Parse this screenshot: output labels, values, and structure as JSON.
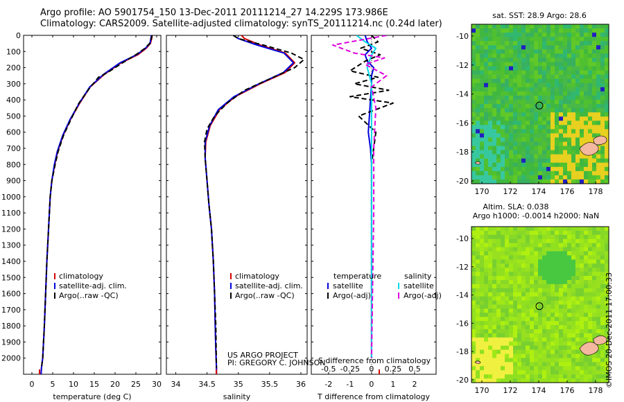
{
  "header": {
    "line1": "Argo profile: AO 5901754_150 13-Dec-2011 20111214_27 14.229S 173.986E",
    "line2": "Climatology: CARS2009. Satellite-adjusted climatology: synTS_20111214.nc (0.24d later)"
  },
  "credit": {
    "project": "US ARGO PROJECT",
    "pi": "PI: GREGORY C. JOHNSON"
  },
  "imos_stamp": "©IMOS 20-Dec-2011 17:00:33",
  "colors": {
    "climatology": "#d00000",
    "satellite": "#0000dd",
    "argo": "#000000",
    "sal_satellite": "#00d8e8",
    "sal_argo": "#dd00dd"
  },
  "chart_data": [
    {
      "type": "line",
      "xlabel": "temperature (deg C)",
      "ylabel": "",
      "xlim": [
        -2,
        31
      ],
      "ylim": [
        2100,
        0
      ],
      "xticks": [
        0,
        5,
        10,
        15,
        20,
        25,
        30
      ],
      "yticks": [
        0,
        100,
        200,
        300,
        400,
        500,
        600,
        700,
        800,
        900,
        1000,
        1100,
        1200,
        1300,
        1400,
        1500,
        1600,
        1700,
        1800,
        1900,
        2000
      ],
      "legend": [
        "climatology",
        "satellite-adj. clim.",
        "Argo(..raw -QC)"
      ],
      "series": [
        {
          "name": "climatology",
          "x": [
            28.9,
            28.8,
            28.5,
            27.5,
            25.5,
            21.5,
            17.5,
            14.0,
            11.5,
            9.3,
            7.5,
            6.2,
            5.5,
            4.8,
            4.4,
            4.0,
            3.6,
            3.3,
            3.0,
            2.6,
            2.3,
            2.2
          ],
          "y": [
            0,
            20,
            50,
            80,
            120,
            170,
            240,
            320,
            420,
            520,
            620,
            720,
            800,
            900,
            1000,
            1200,
            1400,
            1600,
            1800,
            2000,
            2060,
            2100
          ]
        },
        {
          "name": "satellite-adj. clim.",
          "x": [
            28.7,
            28.6,
            28.4,
            27.3,
            25.2,
            21.2,
            17.3,
            13.9,
            11.4,
            9.2,
            7.4,
            6.1,
            5.4,
            4.8,
            4.4,
            4.0,
            3.6,
            3.3,
            3.0,
            2.6,
            2.3,
            2.2
          ],
          "y": [
            0,
            20,
            50,
            80,
            120,
            170,
            240,
            320,
            420,
            520,
            620,
            720,
            800,
            900,
            1000,
            1200,
            1400,
            1600,
            1800,
            2000,
            2060,
            2100
          ]
        },
        {
          "name": "Argo(..raw -QC)",
          "x": [
            28.9,
            28.7,
            28.3,
            27.2,
            25.0,
            21.8,
            18.2,
            16.0,
            13.8,
            11.3,
            9.4,
            7.6,
            6.3,
            5.6,
            4.8,
            4.4,
            4.0,
            3.6,
            3.3,
            3.0,
            2.6,
            2.3
          ],
          "y": [
            0,
            20,
            50,
            80,
            120,
            170,
            230,
            260,
            330,
            420,
            520,
            620,
            720,
            800,
            900,
            1000,
            1200,
            1400,
            1600,
            1800,
            2000,
            2060
          ]
        }
      ]
    },
    {
      "type": "line",
      "xlabel": "salinity",
      "ylabel": "",
      "xlim": [
        33.85,
        36.1
      ],
      "ylim": [
        2100,
        0
      ],
      "xticks": [
        34,
        34.5,
        35,
        35.5,
        36
      ],
      "legend": [
        "climatology",
        "satellite-adj. clim.",
        "Argo(..raw -QC)"
      ],
      "series": [
        {
          "name": "climatology",
          "x": [
            35.05,
            35.1,
            35.35,
            35.75,
            35.9,
            35.75,
            35.35,
            34.95,
            34.7,
            34.55,
            34.48,
            34.47,
            34.5,
            34.53,
            34.57,
            34.6,
            34.62,
            34.63,
            34.64,
            34.65,
            34.65
          ],
          "y": [
            0,
            20,
            60,
            110,
            170,
            230,
            300,
            380,
            460,
            560,
            660,
            760,
            900,
            1050,
            1200,
            1400,
            1600,
            1800,
            1950,
            2060,
            2100
          ]
        },
        {
          "name": "satellite-adj. clim.",
          "x": [
            34.92,
            35.0,
            35.3,
            35.73,
            35.88,
            35.72,
            35.33,
            34.93,
            34.68,
            34.54,
            34.47,
            34.47,
            34.5,
            34.53,
            34.57,
            34.6,
            34.62,
            34.63,
            34.64,
            34.65,
            34.65
          ],
          "y": [
            0,
            20,
            60,
            110,
            170,
            230,
            300,
            380,
            460,
            560,
            660,
            760,
            900,
            1050,
            1200,
            1400,
            1600,
            1800,
            1950,
            2060,
            2100
          ]
        },
        {
          "name": "Argo(..raw -QC)",
          "x": [
            34.92,
            35.0,
            35.4,
            35.85,
            36.05,
            35.9,
            35.5,
            35.1,
            34.82,
            34.62,
            34.5,
            34.46,
            34.47,
            34.5,
            34.53,
            34.57,
            34.6,
            34.62,
            34.64,
            34.65
          ],
          "y": [
            0,
            20,
            60,
            110,
            150,
            200,
            270,
            340,
            420,
            500,
            580,
            660,
            760,
            900,
            1050,
            1200,
            1400,
            1600,
            1800,
            2060
          ]
        }
      ]
    },
    {
      "type": "line",
      "xlabel": "T difference from climatology",
      "xlabel_top": "S difference from climatology",
      "ylabel": "",
      "xlim": [
        -2.8,
        3.0
      ],
      "ylim": [
        2100,
        0
      ],
      "xticks": [
        -2,
        -1,
        0,
        1,
        2
      ],
      "sticks": [
        -0.5,
        -0.25,
        0,
        0.25,
        0.5
      ],
      "legend_titles": [
        "temperature",
        "salinity"
      ],
      "legend": [
        "satellite",
        "Argo(-adj)",
        "satellite",
        "Argo(-adj)"
      ],
      "series": [
        {
          "name": "satellite",
          "x": [
            -0.3,
            -0.2,
            0.0,
            -0.3,
            -0.2,
            0.1,
            0.0,
            0.0,
            -0.05,
            -0.1,
            -0.15,
            -0.05,
            0.0,
            0.0,
            0.0
          ],
          "y": [
            0,
            40,
            80,
            120,
            160,
            200,
            250,
            300,
            400,
            500,
            600,
            700,
            800,
            1200,
            2000
          ]
        },
        {
          "name": "Argo(-adj)",
          "x": [
            0.0,
            0.3,
            -0.5,
            0.4,
            -0.3,
            -1.0,
            0.3,
            -0.8,
            0.8,
            -1.0,
            1.0,
            -0.6,
            0.2,
            0.0,
            0.0,
            0.0
          ],
          "y": [
            0,
            40,
            80,
            120,
            160,
            220,
            260,
            300,
            340,
            380,
            420,
            500,
            600,
            800,
            1200,
            2000
          ]
        },
        {
          "name": "satellite",
          "x": [
            -0.7,
            -0.3,
            0.2,
            0.0,
            -0.2,
            0.0,
            0.0,
            0.0,
            0.0
          ],
          "y": [
            0,
            40,
            80,
            120,
            200,
            300,
            600,
            1200,
            2000
          ]
        },
        {
          "name": "Argo(-adj)",
          "x": [
            0.7,
            -1.8,
            -0.8,
            0.6,
            -0.3,
            0.7,
            0.0,
            0.2,
            0.1,
            0.1,
            0.0
          ],
          "y": [
            0,
            60,
            110,
            140,
            180,
            250,
            320,
            450,
            700,
            1100,
            2000
          ]
        }
      ]
    }
  ],
  "sst_map": {
    "title": "sat. SST: 28.9 Argo: 28.6",
    "xticks": [
      "170",
      "172",
      "174",
      "176",
      "178"
    ],
    "yticks": [
      "-10",
      "-12",
      "-14",
      "-16",
      "-18",
      "-20"
    ]
  },
  "sla_map": {
    "title1": "Altim. SLA: 0.038",
    "title2": "Argo h1000: -0.0014 h2000: NaN",
    "xticks": [
      "170",
      "172",
      "174",
      "176",
      "178"
    ],
    "yticks": [
      "-10",
      "-12",
      "-14",
      "-16",
      "-18",
      "-20"
    ]
  }
}
